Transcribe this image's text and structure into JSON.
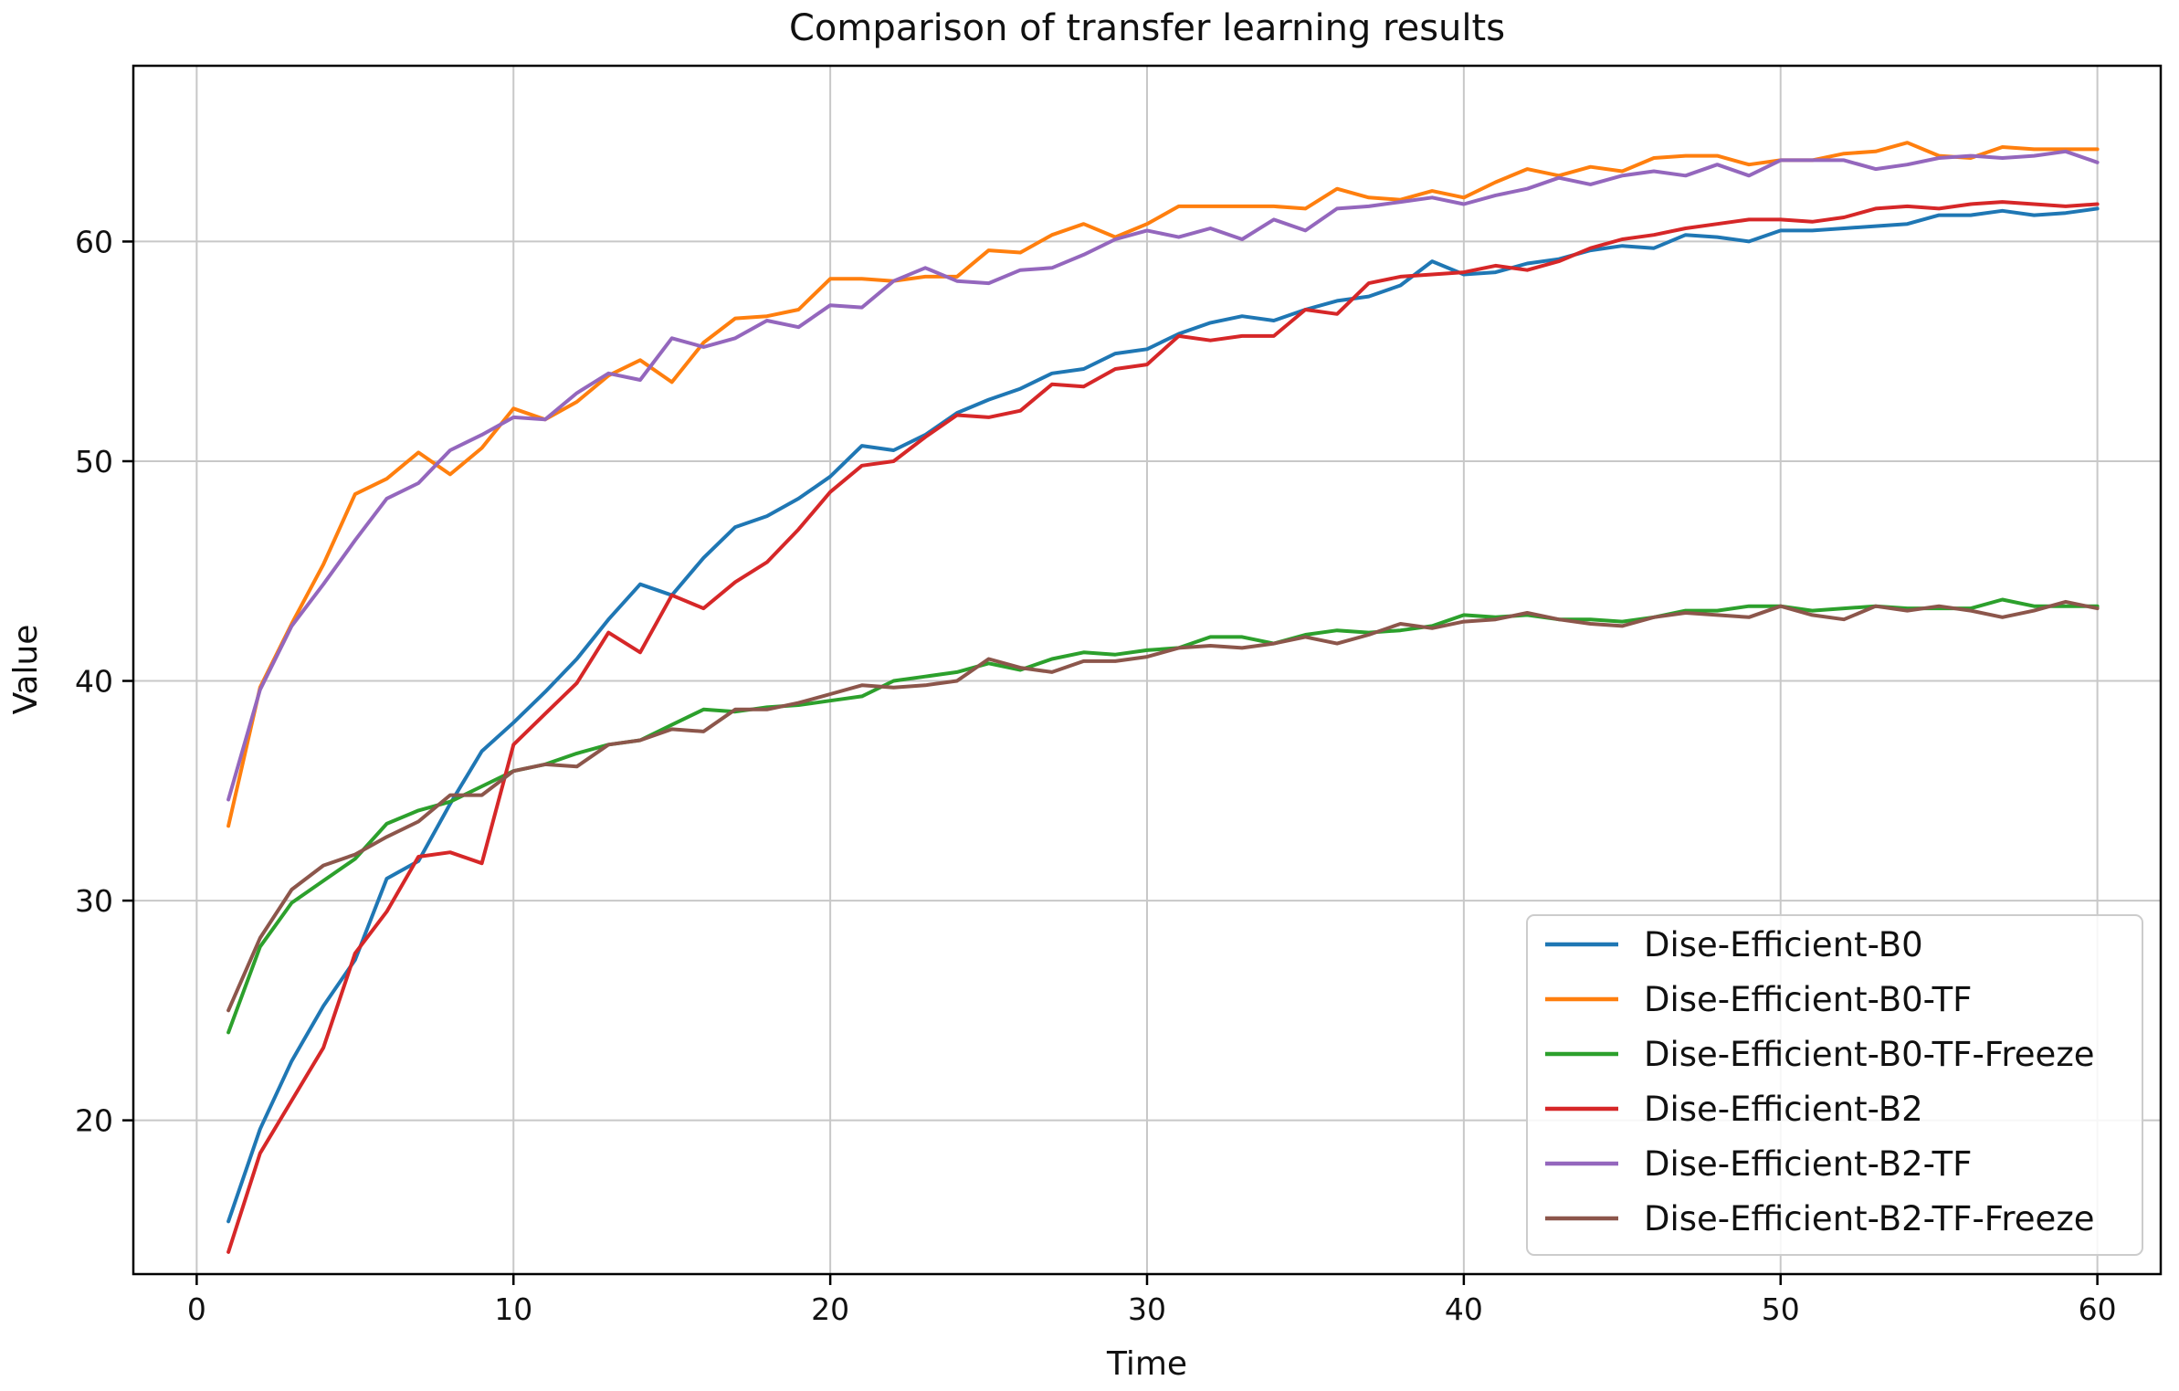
{
  "chart_data": {
    "type": "line",
    "title": "Comparison of transfer learning results",
    "xlabel": "Time",
    "ylabel": "Value",
    "xlim": [
      -2,
      62
    ],
    "ylim": [
      13,
      68
    ],
    "xticks": [
      0,
      10,
      20,
      30,
      40,
      50,
      60
    ],
    "yticks": [
      20,
      30,
      40,
      50,
      60
    ],
    "grid": true,
    "legend_position": "lower-right",
    "x": [
      1,
      2,
      3,
      4,
      5,
      6,
      7,
      8,
      9,
      10,
      11,
      12,
      13,
      14,
      15,
      16,
      17,
      18,
      19,
      20,
      21,
      22,
      23,
      24,
      25,
      26,
      27,
      28,
      29,
      30,
      31,
      32,
      33,
      34,
      35,
      36,
      37,
      38,
      39,
      40,
      41,
      42,
      43,
      44,
      45,
      46,
      47,
      48,
      49,
      50,
      51,
      52,
      53,
      54,
      55,
      56,
      57,
      58,
      59,
      60
    ],
    "series": [
      {
        "name": "Dise-Efficient-B0",
        "color": "#1f77b4",
        "values": [
          15.4,
          19.6,
          22.7,
          25.2,
          27.3,
          31.0,
          31.8,
          34.4,
          36.8,
          38.1,
          39.5,
          41.0,
          42.8,
          44.4,
          43.9,
          45.6,
          47.0,
          47.5,
          48.3,
          49.3,
          50.7,
          50.5,
          51.2,
          52.2,
          52.8,
          53.3,
          54.0,
          54.2,
          54.9,
          55.1,
          55.8,
          56.3,
          56.6,
          56.4,
          56.9,
          57.3,
          57.5,
          58.0,
          59.1,
          58.5,
          58.6,
          59.0,
          59.2,
          59.6,
          59.8,
          59.7,
          60.3,
          60.2,
          60.0,
          60.5,
          60.5,
          60.6,
          60.7,
          60.8,
          61.2,
          61.2,
          61.4,
          61.2,
          61.3,
          61.5
        ]
      },
      {
        "name": "Dise-Efficient-B0-TF",
        "color": "#ff7f0e",
        "values": [
          33.4,
          39.7,
          42.6,
          45.3,
          48.5,
          49.2,
          50.4,
          49.4,
          50.6,
          52.4,
          51.9,
          52.7,
          53.9,
          54.6,
          53.6,
          55.4,
          56.5,
          56.6,
          56.9,
          58.3,
          58.3,
          58.2,
          58.4,
          58.4,
          59.6,
          59.5,
          60.3,
          60.8,
          60.2,
          60.8,
          61.6,
          61.6,
          61.6,
          61.6,
          61.5,
          62.4,
          62.0,
          61.9,
          62.3,
          62.0,
          62.7,
          63.3,
          63.0,
          63.4,
          63.2,
          63.8,
          63.9,
          63.9,
          63.5,
          63.7,
          63.7,
          64.0,
          64.1,
          64.5,
          63.9,
          63.8,
          64.3,
          64.2,
          64.2,
          64.2
        ]
      },
      {
        "name": "Dise-Efficient-B0-TF-Freeze",
        "color": "#2ca02c",
        "values": [
          24.0,
          27.9,
          29.9,
          30.9,
          31.9,
          33.5,
          34.1,
          34.5,
          35.2,
          35.9,
          36.2,
          36.7,
          37.1,
          37.3,
          38.0,
          38.7,
          38.6,
          38.8,
          38.9,
          39.1,
          39.3,
          40.0,
          40.2,
          40.4,
          40.8,
          40.5,
          41.0,
          41.3,
          41.2,
          41.4,
          41.5,
          42.0,
          42.0,
          41.7,
          42.1,
          42.3,
          42.2,
          42.3,
          42.5,
          43.0,
          42.9,
          43.0,
          42.8,
          42.8,
          42.7,
          42.9,
          43.2,
          43.2,
          43.4,
          43.4,
          43.2,
          43.3,
          43.4,
          43.3,
          43.3,
          43.3,
          43.7,
          43.4,
          43.4,
          43.4
        ]
      },
      {
        "name": "Dise-Efficient-B2",
        "color": "#d62728",
        "values": [
          14.0,
          18.5,
          20.9,
          23.3,
          27.6,
          29.5,
          32.0,
          32.2,
          31.7,
          37.1,
          38.5,
          39.9,
          42.2,
          41.3,
          43.9,
          43.3,
          44.5,
          45.4,
          46.9,
          48.6,
          49.8,
          50.0,
          51.1,
          52.1,
          52.0,
          52.3,
          53.5,
          53.4,
          54.2,
          54.4,
          55.7,
          55.5,
          55.7,
          55.7,
          56.9,
          56.7,
          58.1,
          58.4,
          58.5,
          58.6,
          58.9,
          58.7,
          59.1,
          59.7,
          60.1,
          60.3,
          60.6,
          60.8,
          61.0,
          61.0,
          60.9,
          61.1,
          61.5,
          61.6,
          61.5,
          61.7,
          61.8,
          61.7,
          61.6,
          61.7
        ]
      },
      {
        "name": "Dise-Efficient-B2-TF",
        "color": "#9467bd",
        "values": [
          34.6,
          39.6,
          42.5,
          44.4,
          46.4,
          48.3,
          49.0,
          50.5,
          51.2,
          52.0,
          51.9,
          53.1,
          54.0,
          53.7,
          55.6,
          55.2,
          55.6,
          56.4,
          56.1,
          57.1,
          57.0,
          58.2,
          58.8,
          58.2,
          58.1,
          58.7,
          58.8,
          59.4,
          60.1,
          60.5,
          60.2,
          60.6,
          60.1,
          61.0,
          60.5,
          61.5,
          61.6,
          61.8,
          62.0,
          61.7,
          62.1,
          62.4,
          62.9,
          62.6,
          63.0,
          63.2,
          63.0,
          63.5,
          63.0,
          63.7,
          63.7,
          63.7,
          63.3,
          63.5,
          63.8,
          63.9,
          63.8,
          63.9,
          64.1,
          63.6
        ]
      },
      {
        "name": "Dise-Efficient-B2-TF-Freeze",
        "color": "#8c564b",
        "values": [
          25.0,
          28.3,
          30.5,
          31.6,
          32.1,
          32.9,
          33.6,
          34.8,
          34.8,
          35.9,
          36.2,
          36.1,
          37.1,
          37.3,
          37.8,
          37.7,
          38.7,
          38.7,
          39.0,
          39.4,
          39.8,
          39.7,
          39.8,
          40.0,
          41.0,
          40.6,
          40.4,
          40.9,
          40.9,
          41.1,
          41.5,
          41.6,
          41.5,
          41.7,
          42.0,
          41.7,
          42.1,
          42.6,
          42.4,
          42.7,
          42.8,
          43.1,
          42.8,
          42.6,
          42.5,
          42.9,
          43.1,
          43.0,
          42.9,
          43.4,
          43.0,
          42.8,
          43.4,
          43.2,
          43.4,
          43.2,
          42.9,
          43.2,
          43.6,
          43.3
        ]
      }
    ]
  }
}
